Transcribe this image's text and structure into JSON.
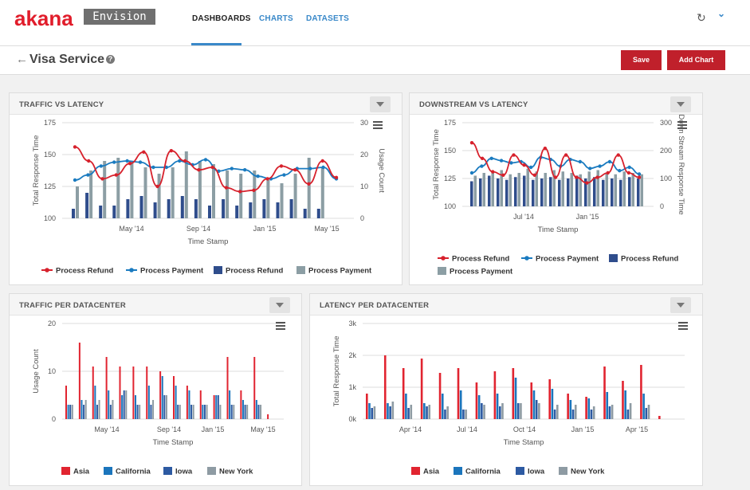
{
  "app": {
    "logo": "akana",
    "product": "Envision"
  },
  "nav": [
    {
      "label": "DASHBOARDS",
      "active": true
    },
    {
      "label": "CHARTS"
    },
    {
      "label": "DATASETS"
    }
  ],
  "icons": {
    "refresh": "refresh-icon",
    "user_menu": "chevron-down-icon",
    "back": "arrow-left-icon",
    "help": "question-icon",
    "menu": "hamburger-icon",
    "dropdown": "caret-down-icon"
  },
  "page": {
    "title": "Visa Service",
    "save_label": "Save",
    "add_chart_label": "Add Chart"
  },
  "colors": {
    "brand": "#c0202b",
    "link": "#3a89c9",
    "refund": "#d7212c",
    "payment": "#1a7bc0",
    "bar_refund": "#2f4d8c",
    "bar_payment": "#8c9ea4",
    "asia": "#e12430",
    "california": "#1b75bc",
    "iowa": "#2d5aa2",
    "newyork": "#8e9ba3"
  },
  "panels": {
    "traffic_latency": {
      "title": "TRAFFIC VS LATENCY"
    },
    "downstream_latency": {
      "title": "DOWNSTREAM VS LATENCY"
    },
    "traffic_dc": {
      "title": "TRAFFIC PER DATACENTER"
    },
    "latency_dc": {
      "title": "LATENCY PER DATACENTER"
    }
  },
  "chart_data": [
    {
      "id": "traffic_latency",
      "type": "line+bar",
      "xlabel": "Time Stamp",
      "ylabel": "Total Response Time",
      "y2label": "Usage Count",
      "ylim": [
        100,
        175
      ],
      "yticks": [
        100,
        125,
        150,
        175
      ],
      "y2lim": [
        0,
        30
      ],
      "y2ticks": [
        0,
        10,
        20,
        30
      ],
      "xticks": [
        "May '14",
        "Sep '14",
        "Jan '15",
        "May '15"
      ],
      "series": [
        {
          "name": "Process Refund",
          "kind": "line",
          "values": [
            156,
            145,
            131,
            134,
            143,
            152,
            125,
            153,
            145,
            138,
            140,
            124,
            121,
            122,
            131,
            141,
            138,
            127,
            145,
            132
          ]
        },
        {
          "name": "Process Payment",
          "kind": "line",
          "values": [
            130,
            134,
            141,
            144,
            145,
            144,
            140,
            140,
            145,
            142,
            146,
            137,
            139,
            138,
            133,
            131,
            134,
            139,
            139,
            140,
            131
          ]
        },
        {
          "name": "Process Refund",
          "kind": "bar",
          "values": [
            3,
            8,
            4,
            4,
            6,
            7,
            5,
            6,
            7,
            6,
            4,
            6,
            4,
            5,
            6,
            5,
            6,
            3,
            3,
            0
          ]
        },
        {
          "name": "Process Payment",
          "kind": "bar",
          "values": [
            10,
            15,
            18,
            19,
            18,
            16,
            14,
            16,
            21,
            18,
            17,
            15,
            14,
            15,
            12,
            11,
            14,
            19,
            16,
            0
          ]
        }
      ],
      "legend": [
        "Process Refund",
        "Process Payment",
        "Process Refund",
        "Process Payment"
      ]
    },
    {
      "id": "downstream_latency",
      "type": "line+bar",
      "xlabel": "Time Stamp",
      "ylabel": "Total Response Time",
      "y2label": "Down Stream Response Time",
      "ylim": [
        100,
        175
      ],
      "yticks": [
        100,
        125,
        150,
        175
      ],
      "y2lim": [
        0,
        300
      ],
      "y2ticks": [
        0,
        100,
        200,
        300
      ],
      "xticks": [
        "Jul '14",
        "Jan '15"
      ],
      "series": [
        {
          "name": "Process Refund",
          "kind": "line",
          "values": [
            157,
            143,
            131,
            128,
            146,
            137,
            128,
            152,
            126,
            146,
            126,
            121,
            126,
            130,
            146,
            130,
            126
          ]
        },
        {
          "name": "Process Payment",
          "kind": "line",
          "values": [
            130,
            136,
            143,
            141,
            139,
            140,
            135,
            144,
            142,
            136,
            142,
            140,
            134,
            136,
            140,
            132,
            135,
            129
          ]
        },
        {
          "name": "Process Refund",
          "kind": "bar",
          "values": [
            90,
            100,
            110,
            100,
            95,
            105,
            110,
            95,
            100,
            105,
            95,
            100,
            110,
            100,
            105,
            95,
            100,
            95,
            105,
            100
          ]
        },
        {
          "name": "Process Payment",
          "kind": "bar",
          "values": [
            110,
            120,
            125,
            130,
            115,
            120,
            135,
            125,
            120,
            130,
            125,
            120,
            115,
            125,
            130,
            120,
            115,
            125,
            120,
            115
          ]
        }
      ],
      "legend": [
        "Process Refund",
        "Process Payment",
        "Process Refund",
        "Process Payment"
      ]
    },
    {
      "id": "traffic_dc",
      "type": "bar",
      "xlabel": "Time Stamp",
      "ylabel": "Usage Count",
      "ylim": [
        0,
        20
      ],
      "yticks": [
        0,
        10,
        20
      ],
      "xticks": [
        "May '14",
        "Sep '14",
        "Jan '15",
        "May '15"
      ],
      "series": [
        {
          "name": "Asia",
          "values": [
            7,
            16,
            11,
            13,
            11,
            11,
            11,
            10,
            9,
            7,
            6,
            5,
            13,
            6,
            13,
            1
          ]
        },
        {
          "name": "California",
          "values": [
            3,
            4,
            7,
            6,
            5,
            5,
            7,
            9,
            7,
            6,
            3,
            5,
            6,
            4,
            4,
            0
          ]
        },
        {
          "name": "Iowa",
          "values": [
            3,
            3,
            3,
            3,
            6,
            3,
            3,
            5,
            3,
            3,
            3,
            5,
            3,
            3,
            3,
            0
          ]
        },
        {
          "name": "New York",
          "values": [
            3,
            4,
            4,
            4,
            6,
            3,
            4,
            5,
            3,
            3,
            3,
            3,
            3,
            3,
            3,
            0
          ]
        }
      ],
      "legend": [
        "Asia",
        "California",
        "Iowa",
        "New York"
      ]
    },
    {
      "id": "latency_dc",
      "type": "bar",
      "xlabel": "Time Stamp",
      "ylabel": "Total Response Time",
      "ylim": [
        0,
        3000
      ],
      "yticks": [
        "0k",
        "1k",
        "2k",
        "3k"
      ],
      "xticks": [
        "Apr '14",
        "Jul '14",
        "Oct '14",
        "Jan '15",
        "Apr '15"
      ],
      "series": [
        {
          "name": "Asia",
          "values": [
            800,
            2000,
            1600,
            1900,
            1450,
            1600,
            1150,
            1500,
            1600,
            1150,
            1250,
            800,
            700,
            1650,
            1200,
            1700,
            100
          ]
        },
        {
          "name": "California",
          "values": [
            500,
            500,
            800,
            500,
            800,
            900,
            750,
            800,
            1300,
            900,
            950,
            600,
            650,
            850,
            900,
            800,
            0
          ]
        },
        {
          "name": "Iowa",
          "values": [
            350,
            400,
            350,
            400,
            300,
            300,
            500,
            400,
            500,
            600,
            300,
            300,
            300,
            400,
            300,
            350,
            0
          ]
        },
        {
          "name": "New York",
          "values": [
            400,
            550,
            450,
            450,
            400,
            300,
            450,
            500,
            500,
            500,
            450,
            450,
            400,
            450,
            500,
            450,
            0
          ]
        }
      ],
      "legend": [
        "Asia",
        "California",
        "Iowa",
        "New York"
      ]
    }
  ]
}
